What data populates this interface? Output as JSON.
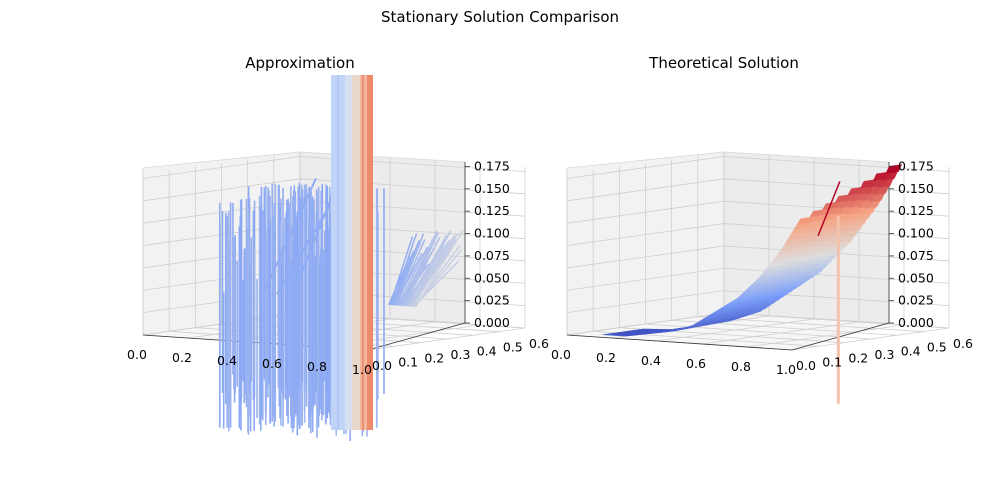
{
  "figure": {
    "suptitle": "Stationary Solution Comparison"
  },
  "chart_data": [
    {
      "type": "surface3d",
      "title": "Approximation",
      "colormap": "coolwarm",
      "x_ticks": [
        "0.0",
        "0.2",
        "0.4",
        "0.6",
        "0.8",
        "1.0"
      ],
      "y_ticks": [
        "0.0",
        "0.1",
        "0.2",
        "0.3",
        "0.4",
        "0.5",
        "0.6"
      ],
      "z_ticks": [
        "0.000",
        "0.025",
        "0.050",
        "0.075",
        "0.100",
        "0.125",
        "0.150",
        "0.175"
      ],
      "xlim": [
        0.0,
        1.0
      ],
      "ylim": [
        0.0,
        0.6
      ],
      "zlim": [
        0.0,
        0.18
      ],
      "grid": true,
      "description_values": {
        "x": [
          0.0,
          0.1,
          0.2,
          0.3,
          0.4,
          0.5,
          0.6,
          0.7,
          0.8,
          0.9,
          1.0
        ],
        "z_center": [
          0.03,
          0.05,
          0.06,
          0.07,
          0.09,
          0.1,
          0.11,
          0.13,
          0.15,
          0.6,
          0.4
        ]
      }
    },
    {
      "type": "surface3d",
      "title": "Theoretical Solution",
      "colormap": "coolwarm",
      "x_ticks": [
        "0.0",
        "0.2",
        "0.4",
        "0.6",
        "0.8",
        "1.0"
      ],
      "y_ticks": [
        "0.0",
        "0.1",
        "0.2",
        "0.3",
        "0.4",
        "0.5",
        "0.6"
      ],
      "z_ticks": [
        "0.000",
        "0.025",
        "0.050",
        "0.075",
        "0.100",
        "0.125",
        "0.150",
        "0.175"
      ],
      "xlim": [
        0.0,
        1.0
      ],
      "ylim": [
        0.0,
        0.6
      ],
      "zlim": [
        0.0,
        0.18
      ],
      "grid": true,
      "description_values": {
        "x": [
          0.0,
          0.1,
          0.2,
          0.3,
          0.4,
          0.5,
          0.6,
          0.7,
          0.8,
          0.9,
          1.0
        ],
        "z_center": [
          0.0,
          0.0,
          0.0,
          0.005,
          0.01,
          0.02,
          0.04,
          0.06,
          0.09,
          0.13,
          0.18
        ]
      }
    }
  ]
}
